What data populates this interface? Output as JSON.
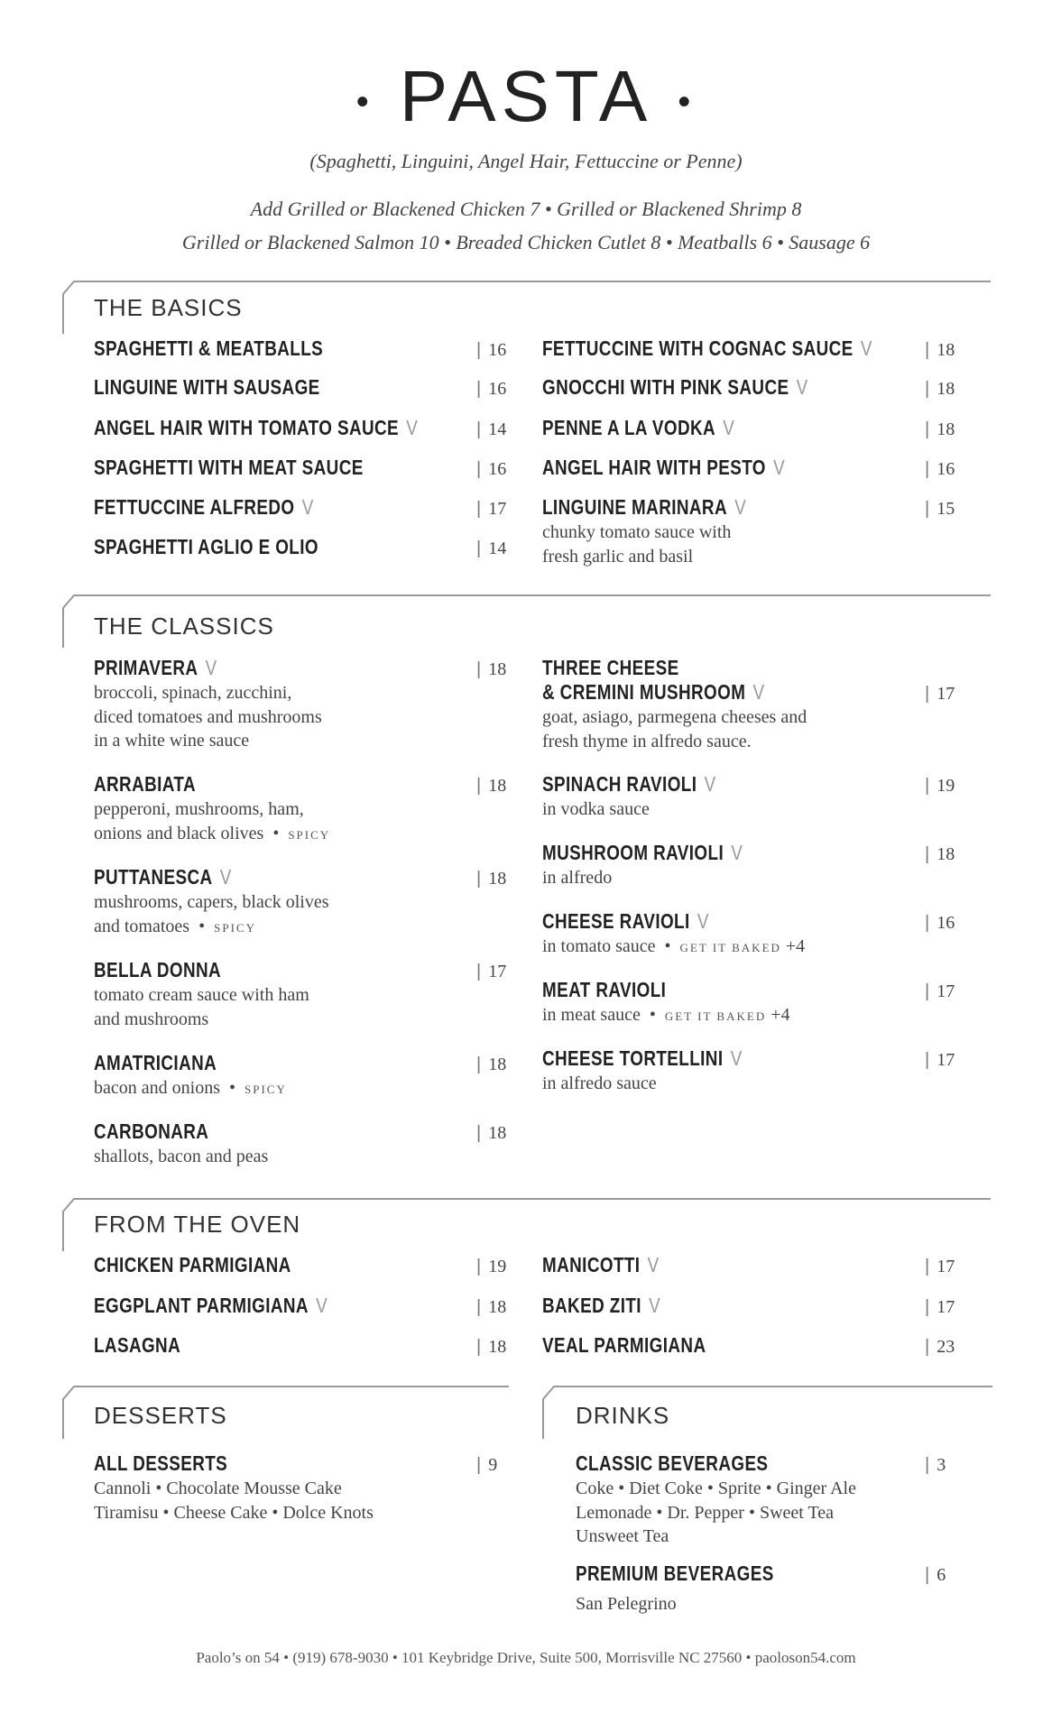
{
  "title": "PASTA",
  "pasta_types": "(Spaghetti, Linguini, Angel Hair, Fettuccine or Penne)",
  "add_ons": [
    "Add Grilled or Blackened Chicken 7  •  Grilled or Blackened Shrimp 8",
    "Grilled or Blackened Salmon 10  •  Breaded Chicken Cutlet 8  •  Meatballs 6  •  Sausage 6"
  ],
  "vegetarian_mark": "V",
  "sections": [
    {
      "title": "THE BASICS",
      "left": [
        {
          "name": [
            "SPAGHETTI & MEATBALLS"
          ],
          "price": "16"
        },
        {
          "name": [
            "LINGUINE WITH SAUSAGE"
          ],
          "price": "16"
        },
        {
          "name": [
            "ANGEL HAIR WITH TOMATO SAUCE"
          ],
          "veg": true,
          "price": "14"
        },
        {
          "name": [
            "SPAGHETTI WITH MEAT SAUCE"
          ],
          "price": "16"
        },
        {
          "name": [
            "FETTUCCINE ALFREDO"
          ],
          "veg": true,
          "price": "17"
        },
        {
          "name": [
            "SPAGHETTI AGLIO E OLIO"
          ],
          "price": "14"
        }
      ],
      "right": [
        {
          "name": [
            "FETTUCCINE WITH COGNAC SAUCE"
          ],
          "veg": true,
          "price": "18"
        },
        {
          "name": [
            "GNOCCHI WITH PINK SAUCE"
          ],
          "veg": true,
          "price": "18"
        },
        {
          "name": [
            "PENNE A LA VODKA"
          ],
          "veg": true,
          "price": "18"
        },
        {
          "name": [
            "ANGEL HAIR WITH PESTO"
          ],
          "veg": true,
          "price": "16"
        },
        {
          "name": [
            "LINGUINE MARINARA"
          ],
          "veg": true,
          "price": "15",
          "desc": [
            "chunky tomato sauce with",
            "fresh garlic and basil"
          ]
        }
      ]
    },
    {
      "title": "THE CLASSICS",
      "left": [
        {
          "name": [
            "PRIMAVERA"
          ],
          "veg": true,
          "price": "18",
          "desc": [
            "broccoli, spinach, zucchini,",
            "diced tomatoes and mushrooms",
            "in a white wine sauce"
          ]
        },
        {
          "name": [
            "ARRABIATA"
          ],
          "price": "18",
          "desc": [
            "pepperoni, mushrooms, ham,",
            "onions and black olives"
          ],
          "tag": "SPICY"
        },
        {
          "name": [
            "PUTTANESCA"
          ],
          "veg": true,
          "price": "18",
          "desc": [
            "mushrooms, capers, black olives",
            "and tomatoes"
          ],
          "tag": "SPICY"
        },
        {
          "name": [
            "BELLA DONNA"
          ],
          "price": "17",
          "desc": [
            "tomato cream sauce with ham",
            "and mushrooms"
          ]
        },
        {
          "name": [
            "AMATRICIANA"
          ],
          "price": "18",
          "desc": [
            "bacon and onions"
          ],
          "tag": "SPICY"
        },
        {
          "name": [
            "CARBONARA"
          ],
          "price": "18",
          "desc": [
            "shallots, bacon and peas"
          ]
        }
      ],
      "right": [
        {
          "name": [
            "THREE CHEESE",
            "& CREMINI MUSHROOM"
          ],
          "veg": true,
          "price": "17",
          "desc": [
            "goat, asiago, parmegena cheeses and",
            "fresh thyme in alfredo sauce."
          ]
        },
        {
          "name": [
            "SPINACH RAVIOLI"
          ],
          "veg": true,
          "price": "19",
          "desc": [
            "in vodka sauce"
          ]
        },
        {
          "name": [
            "MUSHROOM RAVIOLI"
          ],
          "veg": true,
          "price": "18",
          "desc": [
            "in alfredo"
          ]
        },
        {
          "name": [
            "CHEESE RAVIOLI"
          ],
          "veg": true,
          "price": "16",
          "desc": [
            "in tomato sauce"
          ],
          "tag": "GET IT BAKED",
          "tag_extra": "+4"
        },
        {
          "name": [
            "MEAT RAVIOLI"
          ],
          "price": "17",
          "desc": [
            "in meat sauce"
          ],
          "tag": "GET IT BAKED",
          "tag_extra": "+4"
        },
        {
          "name": [
            "CHEESE TORTELLINI"
          ],
          "veg": true,
          "price": "17",
          "desc": [
            "in alfredo sauce"
          ]
        }
      ]
    },
    {
      "title": "FROM THE OVEN",
      "left": [
        {
          "name": [
            "CHICKEN PARMIGIANA"
          ],
          "price": "19"
        },
        {
          "name": [
            "EGGPLANT PARMIGIANA"
          ],
          "veg": true,
          "price": "18"
        },
        {
          "name": [
            "LASAGNA"
          ],
          "price": "18"
        }
      ],
      "right": [
        {
          "name": [
            "MANICOTTI"
          ],
          "veg": true,
          "price": "17"
        },
        {
          "name": [
            "BAKED ZITI"
          ],
          "veg": true,
          "price": "17"
        },
        {
          "name": [
            "VEAL PARMIGIANA"
          ],
          "price": "23"
        }
      ]
    },
    {
      "title": "DESSERTS",
      "left": [
        {
          "name": [
            "ALL DESSERTS"
          ],
          "price": "9",
          "desc": [
            "Cannoli  •  Chocolate Mousse Cake",
            "Tiramisu  •  Cheese Cake  •  Dolce Knots"
          ]
        }
      ],
      "right": []
    },
    {
      "title": "DRINKS",
      "left": [
        {
          "name": [
            "CLASSIC BEVERAGES"
          ],
          "price": "3",
          "desc": [
            "Coke  •  Diet Coke  •  Sprite  •  Ginger Ale",
            "Lemonade  •  Dr. Pepper  •  Sweet Tea",
            "Unsweet Tea"
          ]
        },
        {
          "name": [
            "PREMIUM BEVERAGES"
          ],
          "price": "6",
          "desc": [
            "San Pelegrino"
          ]
        }
      ],
      "right": []
    }
  ],
  "footer": "Paolo’s on 54  •  (919) 678-9030  •  101 Keybridge Drive, Suite 500, Morrisville NC 27560  •  paoloson54.com"
}
